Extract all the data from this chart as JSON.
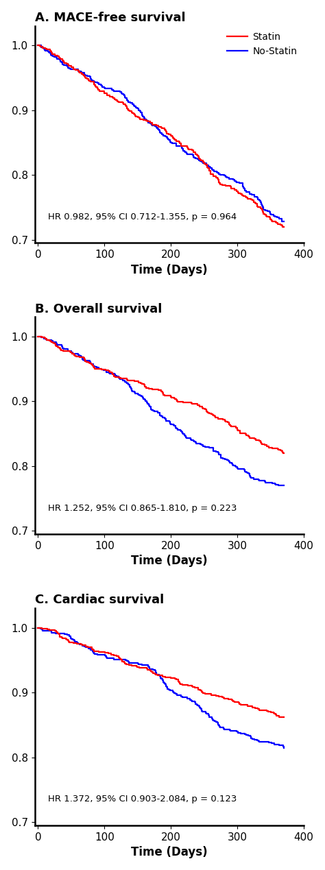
{
  "panels": [
    {
      "title": "A. MACE-free survival",
      "annotation": "HR 0.982, 95% CI 0.712-1.355, p = 0.964",
      "ylim": [
        0.695,
        1.03
      ],
      "yticks": [
        0.7,
        0.8,
        0.9,
        1.0
      ],
      "legend": true,
      "panel_type": "MACE"
    },
    {
      "title": "B. Overall survival",
      "annotation": "HR 1.252, 95% CI 0.865-1.810, p = 0.223",
      "ylim": [
        0.695,
        1.03
      ],
      "yticks": [
        0.7,
        0.8,
        0.9,
        1.0
      ],
      "legend": false,
      "panel_type": "overall"
    },
    {
      "title": "C. Cardiac survival",
      "annotation": "HR 1.372, 95% CI 0.903-2.084, p = 0.123",
      "ylim": [
        0.695,
        1.03
      ],
      "yticks": [
        0.7,
        0.8,
        0.9,
        1.0
      ],
      "legend": false,
      "panel_type": "cardiac"
    }
  ],
  "xlim": [
    -5,
    400
  ],
  "xticks": [
    0,
    100,
    200,
    300,
    400
  ],
  "xlabel": "Time (Days)",
  "statin_color": "#FF0000",
  "nostatin_color": "#0000FF",
  "line_width": 1.6,
  "annotation_fontsize": 9.5,
  "title_fontsize": 13,
  "tick_fontsize": 11,
  "label_fontsize": 12,
  "background_color": "#FFFFFF"
}
